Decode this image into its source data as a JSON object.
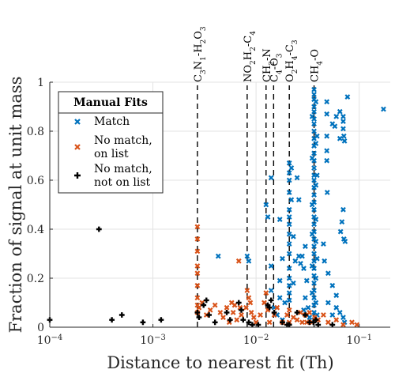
{
  "chart_data": {
    "type": "scatter",
    "xlabel": "Distance to nearest fit (Th)",
    "ylabel": "Fraction of signal at unit mass",
    "xscale": "log",
    "xlim": [
      0.0001,
      0.2
    ],
    "ylim": [
      0,
      1
    ],
    "x_ticks": [
      0.0001,
      0.001,
      0.01,
      0.1
    ],
    "y_ticks": [
      0,
      0.2,
      0.4,
      0.6,
      0.8,
      1
    ],
    "x_tick_labels": [
      {
        "base": "10",
        "exp": "−4"
      },
      {
        "base": "10",
        "exp": "−3"
      },
      {
        "base": "10",
        "exp": "−2"
      },
      {
        "base": "10",
        "exp": "−1"
      }
    ],
    "y_tick_labels": [
      "0",
      "0.2",
      "0.4",
      "0.6",
      "0.8",
      "1"
    ],
    "grid": true,
    "legend": {
      "title": "Manual Fits",
      "placement": "upper-left",
      "entries": [
        {
          "lines": [
            "Match"
          ],
          "marker": "x",
          "color": "#0072BD"
        },
        {
          "lines": [
            "No match,",
            "on list"
          ],
          "marker": "x",
          "color": "#D95319"
        },
        {
          "lines": [
            "No match,",
            "not on list"
          ],
          "marker": "+",
          "color": "#000000"
        }
      ]
    },
    "annotations": [
      {
        "x": 0.0027,
        "label": "C3N1-H2O3"
      },
      {
        "x": 0.0082,
        "label": "NO2H2-C4"
      },
      {
        "x": 0.0125,
        "label": "CH2-N"
      },
      {
        "x": 0.0148,
        "label": "C4-O3"
      },
      {
        "x": 0.021,
        "label": "O2H4-C3"
      },
      {
        "x": 0.0365,
        "label": "CH4-O"
      }
    ],
    "series": [
      {
        "name": "Match",
        "marker": "x",
        "color": "#0072BD",
        "points": [
          [
            0.0365,
            0.97
          ],
          [
            0.0365,
            0.95
          ],
          [
            0.0365,
            0.93
          ],
          [
            0.0365,
            0.9
          ],
          [
            0.0365,
            0.88
          ],
          [
            0.0365,
            0.85
          ],
          [
            0.0365,
            0.83
          ],
          [
            0.0365,
            0.8
          ],
          [
            0.0365,
            0.77
          ],
          [
            0.0365,
            0.74
          ],
          [
            0.0365,
            0.71
          ],
          [
            0.0365,
            0.68
          ],
          [
            0.0365,
            0.65
          ],
          [
            0.0365,
            0.62
          ],
          [
            0.0365,
            0.6
          ],
          [
            0.0365,
            0.57
          ],
          [
            0.0365,
            0.54
          ],
          [
            0.0365,
            0.51
          ],
          [
            0.0365,
            0.48
          ],
          [
            0.0365,
            0.45
          ],
          [
            0.0365,
            0.42
          ],
          [
            0.0365,
            0.39
          ],
          [
            0.0365,
            0.36
          ],
          [
            0.0365,
            0.33
          ],
          [
            0.0365,
            0.3
          ],
          [
            0.0365,
            0.27
          ],
          [
            0.0365,
            0.24
          ],
          [
            0.0365,
            0.21
          ],
          [
            0.0365,
            0.18
          ],
          [
            0.0365,
            0.15
          ],
          [
            0.0365,
            0.12
          ],
          [
            0.0365,
            0.09
          ],
          [
            0.0365,
            0.06
          ],
          [
            0.0365,
            0.03
          ],
          [
            0.038,
            0.92
          ],
          [
            0.038,
            0.75
          ],
          [
            0.038,
            0.58
          ],
          [
            0.038,
            0.44
          ],
          [
            0.038,
            0.35
          ],
          [
            0.038,
            0.2
          ],
          [
            0.038,
            0.1
          ],
          [
            0.035,
            0.86
          ],
          [
            0.035,
            0.69
          ],
          [
            0.035,
            0.5
          ],
          [
            0.035,
            0.38
          ],
          [
            0.035,
            0.25
          ],
          [
            0.035,
            0.14
          ],
          [
            0.039,
            0.78
          ],
          [
            0.039,
            0.62
          ],
          [
            0.039,
            0.28
          ],
          [
            0.039,
            0.05
          ],
          [
            0.0485,
            0.92
          ],
          [
            0.0485,
            0.87
          ],
          [
            0.0485,
            0.78
          ],
          [
            0.0485,
            0.72
          ],
          [
            0.0485,
            0.68
          ],
          [
            0.049,
            0.55
          ],
          [
            0.055,
            0.83
          ],
          [
            0.058,
            0.82
          ],
          [
            0.06,
            0.86
          ],
          [
            0.065,
            0.88
          ],
          [
            0.065,
            0.77
          ],
          [
            0.07,
            0.86
          ],
          [
            0.07,
            0.84
          ],
          [
            0.07,
            0.81
          ],
          [
            0.071,
            0.78
          ],
          [
            0.072,
            0.76
          ],
          [
            0.077,
            0.94
          ],
          [
            0.172,
            0.89
          ],
          [
            0.068,
            0.43
          ],
          [
            0.07,
            0.48
          ],
          [
            0.071,
            0.36
          ],
          [
            0.066,
            0.39
          ],
          [
            0.073,
            0.35
          ],
          [
            0.045,
            0.34
          ],
          [
            0.046,
            0.27
          ],
          [
            0.05,
            0.22
          ],
          [
            0.055,
            0.17
          ],
          [
            0.06,
            0.13
          ],
          [
            0.06,
            0.08
          ],
          [
            0.065,
            0.06
          ],
          [
            0.07,
            0.04
          ],
          [
            0.072,
            0.02
          ],
          [
            0.055,
            0.05
          ],
          [
            0.05,
            0.1
          ],
          [
            0.0125,
            0.5
          ],
          [
            0.013,
            0.45
          ],
          [
            0.014,
            0.61
          ],
          [
            0.014,
            0.25
          ],
          [
            0.014,
            0.15
          ],
          [
            0.015,
            0.08
          ],
          [
            0.017,
            0.44
          ],
          [
            0.018,
            0.28
          ],
          [
            0.017,
            0.19
          ],
          [
            0.016,
            0.05
          ],
          [
            0.018,
            0.03
          ],
          [
            0.019,
            0.1
          ],
          [
            0.017,
            0.12
          ],
          [
            0.021,
            0.67
          ],
          [
            0.021,
            0.63
          ],
          [
            0.021,
            0.6
          ],
          [
            0.021,
            0.55
          ],
          [
            0.021,
            0.48
          ],
          [
            0.021,
            0.45
          ],
          [
            0.021,
            0.42
          ],
          [
            0.021,
            0.38
          ],
          [
            0.021,
            0.34
          ],
          [
            0.021,
            0.3
          ],
          [
            0.021,
            0.24
          ],
          [
            0.021,
            0.2
          ],
          [
            0.021,
            0.17
          ],
          [
            0.021,
            0.14
          ],
          [
            0.021,
            0.11
          ],
          [
            0.022,
            0.65
          ],
          [
            0.022,
            0.52
          ],
          [
            0.023,
            0.37
          ],
          [
            0.023,
            0.18
          ],
          [
            0.025,
            0.61
          ],
          [
            0.024,
            0.27
          ],
          [
            0.026,
            0.52
          ],
          [
            0.026,
            0.29
          ],
          [
            0.027,
            0.26
          ],
          [
            0.028,
            0.29
          ],
          [
            0.03,
            0.33
          ],
          [
            0.029,
            0.24
          ],
          [
            0.031,
            0.19
          ],
          [
            0.03,
            0.12
          ],
          [
            0.032,
            0.08
          ],
          [
            0.033,
            0.04
          ],
          [
            0.029,
            0.07
          ],
          [
            0.0043,
            0.29
          ],
          [
            0.0082,
            0.29
          ],
          [
            0.0085,
            0.27
          ]
        ]
      },
      {
        "name": "No match, on list",
        "marker": "x",
        "color": "#D95319",
        "points": [
          [
            0.0027,
            0.41
          ],
          [
            0.0027,
            0.36
          ],
          [
            0.0027,
            0.31
          ],
          [
            0.0027,
            0.25
          ],
          [
            0.0027,
            0.22
          ],
          [
            0.0027,
            0.17
          ],
          [
            0.0027,
            0.12
          ],
          [
            0.0027,
            0.09
          ],
          [
            0.0027,
            0.06
          ],
          [
            0.0028,
            0.08
          ],
          [
            0.003,
            0.1
          ],
          [
            0.0033,
            0.05
          ],
          [
            0.0036,
            0.07
          ],
          [
            0.004,
            0.09
          ],
          [
            0.0045,
            0.06
          ],
          [
            0.0048,
            0.04
          ],
          [
            0.0052,
            0.08
          ],
          [
            0.0055,
            0.02
          ],
          [
            0.0058,
            0.1
          ],
          [
            0.006,
            0.06
          ],
          [
            0.0062,
            0.09
          ],
          [
            0.0065,
            0.03
          ],
          [
            0.0068,
            0.27
          ],
          [
            0.007,
            0.08
          ],
          [
            0.0072,
            0.05
          ],
          [
            0.008,
            0.08
          ],
          [
            0.0082,
            0.15
          ],
          [
            0.0085,
            0.12
          ],
          [
            0.0088,
            0.1
          ],
          [
            0.009,
            0.06
          ],
          [
            0.0095,
            0.04
          ],
          [
            0.01,
            0.02
          ],
          [
            0.011,
            0.05
          ],
          [
            0.012,
            0.1
          ],
          [
            0.0125,
            0.14
          ],
          [
            0.013,
            0.07
          ],
          [
            0.0135,
            0.02
          ],
          [
            0.015,
            0.05
          ],
          [
            0.016,
            0.08
          ],
          [
            0.018,
            0.02
          ],
          [
            0.02,
            0.05
          ],
          [
            0.021,
            0.07
          ],
          [
            0.021,
            0.02
          ],
          [
            0.023,
            0.04
          ],
          [
            0.025,
            0.03
          ],
          [
            0.027,
            0.06
          ],
          [
            0.028,
            0.02
          ],
          [
            0.03,
            0.05
          ],
          [
            0.031,
            0.02
          ],
          [
            0.033,
            0.06
          ],
          [
            0.035,
            0.02
          ],
          [
            0.037,
            0.04
          ],
          [
            0.04,
            0.03
          ],
          [
            0.045,
            0.05
          ],
          [
            0.05,
            0.02
          ],
          [
            0.06,
            0.03
          ],
          [
            0.07,
            0.01
          ],
          [
            0.085,
            0.02
          ],
          [
            0.095,
            0.01
          ]
        ]
      },
      {
        "name": "No match, not on list",
        "marker": "+",
        "color": "#000000",
        "points": [
          [
            0.0001,
            0.03
          ],
          [
            0.0003,
            0.4
          ],
          [
            0.0004,
            0.03
          ],
          [
            0.0005,
            0.05
          ],
          [
            0.0008,
            0.02
          ],
          [
            0.0012,
            0.03
          ],
          [
            0.0027,
            0.06
          ],
          [
            0.0028,
            0.04
          ],
          [
            0.0031,
            0.09
          ],
          [
            0.0033,
            0.11
          ],
          [
            0.0035,
            0.05
          ],
          [
            0.004,
            0.02
          ],
          [
            0.0052,
            0.06
          ],
          [
            0.0056,
            0.03
          ],
          [
            0.0068,
            0.1
          ],
          [
            0.0072,
            0.07
          ],
          [
            0.0075,
            0.03
          ],
          [
            0.0085,
            0.02
          ],
          [
            0.0092,
            0.01
          ],
          [
            0.0105,
            0.01
          ],
          [
            0.013,
            0.09
          ],
          [
            0.0135,
            0.08
          ],
          [
            0.014,
            0.11
          ],
          [
            0.015,
            0.06
          ],
          [
            0.018,
            0.02
          ],
          [
            0.02,
            0.01
          ],
          [
            0.021,
            0.01
          ],
          [
            0.025,
            0.06
          ],
          [
            0.03,
            0.05
          ],
          [
            0.033,
            0.02
          ],
          [
            0.036,
            0.02
          ],
          [
            0.038,
            0.03
          ],
          [
            0.04,
            0.01
          ],
          [
            0.055,
            0.01
          ]
        ]
      }
    ]
  }
}
